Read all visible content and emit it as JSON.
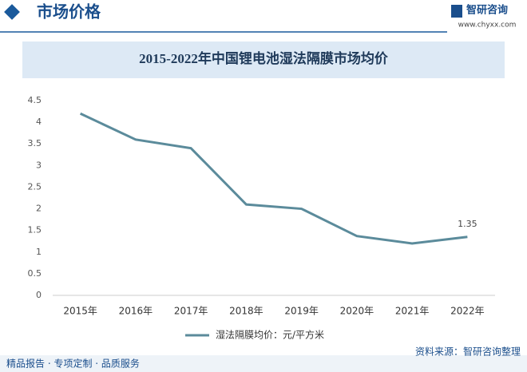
{
  "header": {
    "section": "市场价格",
    "brand": "智研咨询",
    "website": "www.chyxx.com"
  },
  "chart_data": {
    "type": "line",
    "title": "2015-2022年中国锂电池湿法隔膜市场均价",
    "categories": [
      "2015年",
      "2016年",
      "2017年",
      "2018年",
      "2019年",
      "2020年",
      "2021年",
      "2022年"
    ],
    "series": [
      {
        "name": "湿法隔膜均价：元/平方米",
        "color": "#5b8b9b",
        "values": [
          4.2,
          3.6,
          3.4,
          2.1,
          2.0,
          1.37,
          1.2,
          1.35
        ]
      }
    ],
    "ylim": [
      0,
      4.5
    ],
    "yticks": [
      0,
      0.5,
      1,
      1.5,
      2,
      2.5,
      3,
      3.5,
      4,
      4.5
    ],
    "grid": false,
    "label_last_point": true
  },
  "footer": {
    "left": "精品报告 · 专项定制 · 品质服务",
    "source": "资料来源：智研咨询整理"
  }
}
